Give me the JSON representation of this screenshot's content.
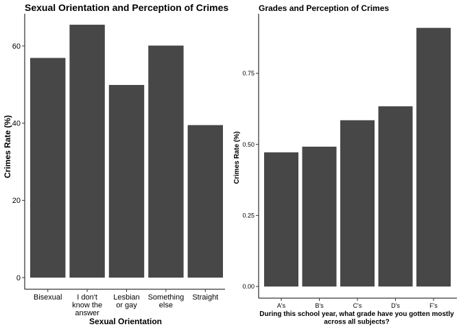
{
  "chart_data": [
    {
      "type": "bar",
      "title": "Sexual Orientation and Perception of Crimes",
      "xlabel": "Sexual Orientation",
      "ylabel": "Crimes Rate (%)",
      "categories": [
        [
          "Bisexual"
        ],
        [
          "I don't",
          "know the",
          "answer"
        ],
        [
          "Lesbian",
          "or gay"
        ],
        [
          "Something",
          "else"
        ],
        [
          "Straight"
        ]
      ],
      "values": [
        56.9,
        65.5,
        49.9,
        60.1,
        39.5
      ],
      "yticks": [
        "0",
        "20",
        "40",
        "60"
      ],
      "ylim": [
        0,
        68
      ],
      "bar_color": "#474747",
      "grid": false
    },
    {
      "type": "bar",
      "title": "Grades and Perception of Crimes",
      "xlabel": "During this school year, what grade have you gotten mostly\nacross all subjects?",
      "ylabel": "Crimes Rate (%)",
      "categories": [
        [
          "A's"
        ],
        [
          "B's"
        ],
        [
          "C's"
        ],
        [
          "D's"
        ],
        [
          "F's"
        ]
      ],
      "values": [
        0.472,
        0.492,
        0.585,
        0.634,
        0.91
      ],
      "yticks": [
        "0.00",
        "0.25",
        "0.50",
        "0.75"
      ],
      "ylim": [
        0,
        0.955
      ],
      "bar_color": "#474747",
      "grid": false
    }
  ]
}
